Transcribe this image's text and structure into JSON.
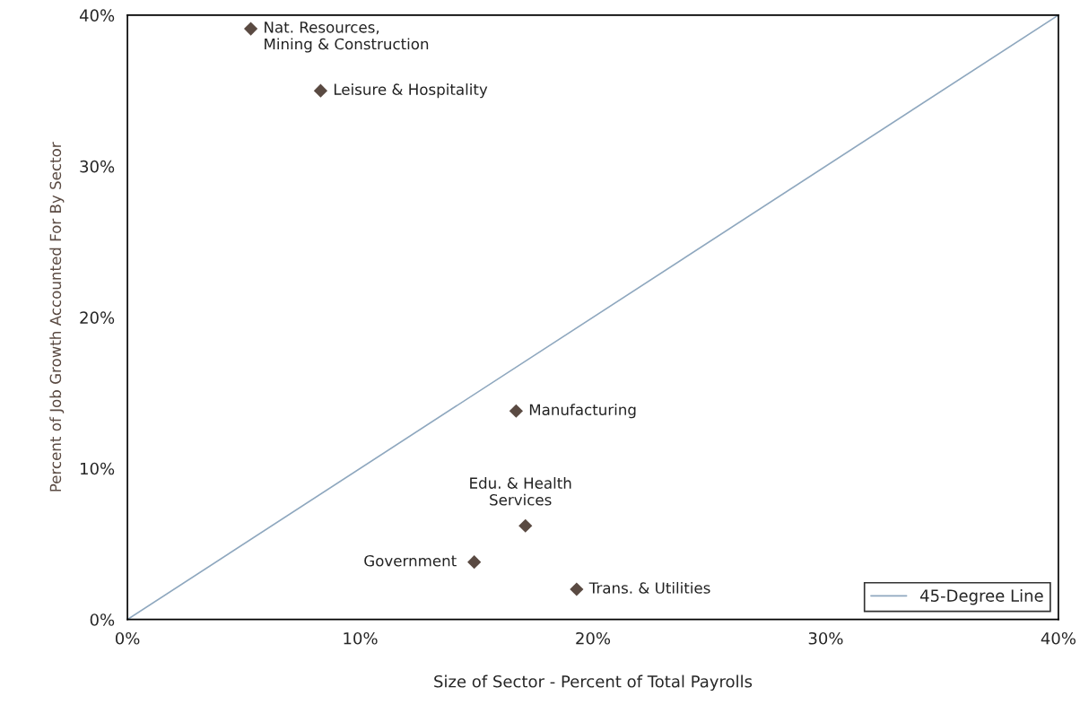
{
  "chart_data": {
    "type": "scatter",
    "xlabel": "Size of Sector - Percent of Total Payrolls",
    "ylabel": "Percent of Job Growth Accounted For By Sector",
    "series": [
      {
        "color": "#5a4a42",
        "marker": "diamond",
        "x": [
          5.3,
          8.3,
          16.7,
          17.1,
          14.9,
          19.3
        ],
        "values": [
          39.1,
          35.0,
          13.8,
          6.2,
          3.8,
          2.0
        ]
      },
      {
        "type": "line",
        "name": "45-Degree Line",
        "color": "#8fa8bf",
        "marker": "none",
        "line_style": "solid",
        "x": [
          0,
          40
        ],
        "values": [
          0,
          40
        ]
      }
    ],
    "annotations": [
      {
        "text": "Nat. Resources,\nMining & Construction",
        "x": 5.3,
        "y": 39.1
      },
      {
        "text": "Leisure & Hospitality",
        "x": 8.3,
        "y": 35.0
      },
      {
        "text": "Manufacturing",
        "x": 16.7,
        "y": 13.8
      },
      {
        "text": "Edu. & Health\nServices",
        "x": 17.1,
        "y": 6.2
      },
      {
        "text": "Government",
        "x": 14.9,
        "y": 3.8
      },
      {
        "text": "Trans. & Utilities",
        "x": 19.3,
        "y": 2.0
      }
    ],
    "xlim": [
      0,
      40
    ],
    "ylim": [
      0,
      40
    ],
    "xticks": [
      {
        "value": 0,
        "label": "0%"
      },
      {
        "value": 10,
        "label": "10%"
      },
      {
        "value": 20,
        "label": "20%"
      },
      {
        "value": 30,
        "label": "30%"
      },
      {
        "value": 40,
        "label": "40%"
      }
    ],
    "yticks": [
      {
        "value": 0,
        "label": "0%"
      },
      {
        "value": 10,
        "label": "10%"
      },
      {
        "value": 20,
        "label": "20%"
      },
      {
        "value": 30,
        "label": "30%"
      },
      {
        "value": 40,
        "label": "40%"
      }
    ],
    "grid": false,
    "legend": "bottom right"
  }
}
